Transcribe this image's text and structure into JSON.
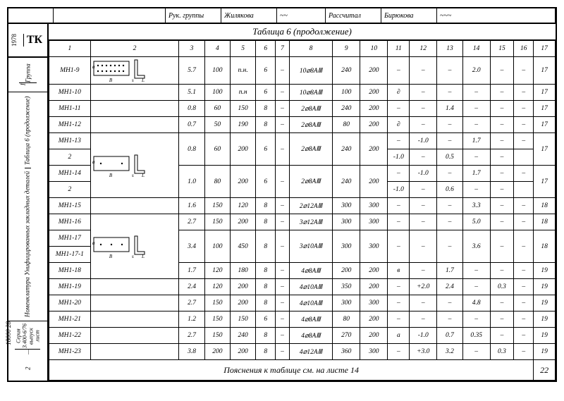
{
  "header": {
    "role1_label": "Рук. группы",
    "role1_name": "Жилякова",
    "role2_label": "Рассчитал",
    "role2_name": "Бирюкова"
  },
  "left": {
    "tk": "ТК",
    "year": "1978",
    "gruppa": "Группа",
    "one": "1",
    "nomen": "Номенклатура Унифицированных закладных деталей",
    "tabl6": "Таблица 6 (продолжение)",
    "seria": "Серия 3.400-6/76 выпуск лист",
    "dash": "—",
    "two": "2"
  },
  "title": "Таблица 6 (продолжение)",
  "cols": [
    "1",
    "2",
    "3",
    "4",
    "5",
    "6",
    "7",
    "8",
    "9",
    "10",
    "11",
    "12",
    "13",
    "14",
    "15",
    "16",
    "17"
  ],
  "rows": [
    {
      "c1": "МН1-9",
      "c2": "dia1",
      "c3": "5.7",
      "c4": "100",
      "c5": "п.н.",
      "c6": "6",
      "c7": "–",
      "c8": "10⌀8АⅢ",
      "c9": "240",
      "c10": "200",
      "c11": "–",
      "c12": "–",
      "c13": "–",
      "c14": "2.0",
      "c15": "–",
      "c16": "–",
      "c17": "17",
      "span2": 1
    },
    {
      "c1": "МН1-10",
      "c2": "",
      "c3": "5.1",
      "c4": "100",
      "c5": "п.н",
      "c6": "6",
      "c7": "–",
      "c8": "10⌀8АⅢ",
      "c9": "100",
      "c10": "200",
      "c11": "∂",
      "c12": "–",
      "c13": "–",
      "c14": "–",
      "c15": "–",
      "c16": "–",
      "c17": "17"
    },
    {
      "c1": "МН1-11",
      "c2": "",
      "c3": "0.8",
      "c4": "60",
      "c5": "150",
      "c6": "8",
      "c7": "–",
      "c8": "2⌀8АⅢ",
      "c9": "240",
      "c10": "200",
      "c11": "–",
      "c12": "–",
      "c13": "1.4",
      "c14": "–",
      "c15": "–",
      "c16": "–",
      "c17": "17"
    },
    {
      "c1": "МН1-12",
      "c2": "",
      "c3": "0.7",
      "c4": "50",
      "c5": "190",
      "c6": "8",
      "c7": "–",
      "c8": "2⌀8АⅢ",
      "c9": "80",
      "c10": "200",
      "c11": "∂",
      "c12": "–",
      "c13": "–",
      "c14": "–",
      "c15": "–",
      "c16": "–",
      "c17": "17"
    },
    {
      "c1": "МН1-13",
      "c2": "dia2",
      "c3": "0.8",
      "c4": "60",
      "c5": "200",
      "c6": "6",
      "c7": "–",
      "c8": "2⌀8АⅢ",
      "c9": "240",
      "c10": "200",
      "c11": "–",
      "c12": "-1.0",
      "c13": "–",
      "c14": "1.7",
      "c15": "–",
      "c16": "–",
      "c17": "17",
      "r11": "2",
      "r12": "-1.0",
      "r13": "–",
      "r14": "0.5",
      "r15": "–",
      "r16": "–",
      "span2": 2,
      "tworow": true
    },
    {
      "c1": "МН1-14",
      "c2": "",
      "c3": "1.0",
      "c4": "80",
      "c5": "200",
      "c6": "6",
      "c7": "–",
      "c8": "2⌀8АⅢ",
      "c9": "240",
      "c10": "200",
      "c11": "–",
      "c12": "-1.0",
      "c13": "–",
      "c14": "1.7",
      "c15": "–",
      "c16": "–",
      "c17": "17",
      "r11": "2",
      "r12": "-1.0",
      "r13": "–",
      "r14": "0.6",
      "r15": "–",
      "r16": "–",
      "tworow": true
    },
    {
      "c1": "МН1-15",
      "c2": "",
      "c3": "1.6",
      "c4": "150",
      "c5": "120",
      "c6": "8",
      "c7": "–",
      "c8": "2⌀12АⅢ",
      "c9": "300",
      "c10": "300",
      "c11": "–",
      "c12": "–",
      "c13": "–",
      "c14": "3.3",
      "c15": "–",
      "c16": "–",
      "c17": "18"
    },
    {
      "c1": "МН1-16",
      "c2": "dia3",
      "c3": "2.7",
      "c4": "150",
      "c5": "200",
      "c6": "8",
      "c7": "–",
      "c8": "3⌀12АⅢ",
      "c9": "300",
      "c10": "300",
      "c11": "–",
      "c12": "–",
      "c13": "–",
      "c14": "5.0",
      "c15": "–",
      "c16": "–",
      "c17": "18",
      "span2": 3
    },
    {
      "c1": "МН1-17",
      "c2": "",
      "c3": "3.4",
      "c4": "100",
      "c5": "450",
      "c6": "8",
      "c7": "–",
      "c8": "3⌀10АⅢ",
      "c9": "300",
      "c10": "300",
      "c11": "–",
      "c12": "–",
      "c13": "–",
      "c14": "3.6",
      "c15": "–",
      "c16": "–",
      "c17": "18",
      "r1b": "МН1-17-1",
      "tworow1": true
    },
    {
      "c1": "МН1-18",
      "c2": "dia4",
      "c3": "1.7",
      "c4": "120",
      "c5": "180",
      "c6": "8",
      "c7": "–",
      "c8": "4⌀8АⅢ",
      "c9": "200",
      "c10": "200",
      "c11": "в",
      "c12": "–",
      "c13": "1.7",
      "c14": "–",
      "c15": "–",
      "c16": "–",
      "c17": "19",
      "span2": 4
    },
    {
      "c1": "МН1-19",
      "c2": "",
      "c3": "2.4",
      "c4": "120",
      "c5": "200",
      "c6": "8",
      "c7": "–",
      "c8": "4⌀10АⅢ",
      "c9": "350",
      "c10": "200",
      "c11": "–",
      "c12": "+2.0",
      "c13": "2.4",
      "c14": "–",
      "c15": "0.3",
      "c16": "–",
      "c17": "19"
    },
    {
      "c1": "МН1-20",
      "c2": "",
      "c3": "2.7",
      "c4": "150",
      "c5": "200",
      "c6": "8",
      "c7": "–",
      "c8": "4⌀10АⅢ",
      "c9": "300",
      "c10": "300",
      "c11": "–",
      "c12": "–",
      "c13": "–",
      "c14": "4.8",
      "c15": "–",
      "c16": "–",
      "c17": "19"
    },
    {
      "c1": "МН1-21",
      "c2": "",
      "c3": "1.2",
      "c4": "150",
      "c5": "150",
      "c6": "6",
      "c7": "–",
      "c8": "4⌀8АⅢ",
      "c9": "80",
      "c10": "200",
      "c11": "–",
      "c12": "–",
      "c13": "–",
      "c14": "–",
      "c15": "–",
      "c16": "–",
      "c17": "19"
    },
    {
      "c1": "МН1-22",
      "c2": "",
      "c3": "2.7",
      "c4": "150",
      "c5": "240",
      "c6": "8",
      "c7": "–",
      "c8": "4⌀8АⅢ",
      "c9": "270",
      "c10": "200",
      "c11": "а",
      "c12": "-1.0",
      "c13": "0.7",
      "c14": "0.35",
      "c15": "–",
      "c16": "–",
      "c17": "19"
    },
    {
      "c1": "МН1-23",
      "c2": "",
      "c3": "3.8",
      "c4": "200",
      "c5": "200",
      "c6": "8",
      "c7": "–",
      "c8": "4⌀12АⅢ",
      "c9": "360",
      "c10": "300",
      "c11": "–",
      "c12": "+3.0",
      "c13": "3.2",
      "c14": "–",
      "c15": "0.3",
      "c16": "–",
      "c17": "19"
    }
  ],
  "footer": "Пояснения к таблице см. на листе 14",
  "footer_page": "22",
  "margin": "18000   28"
}
